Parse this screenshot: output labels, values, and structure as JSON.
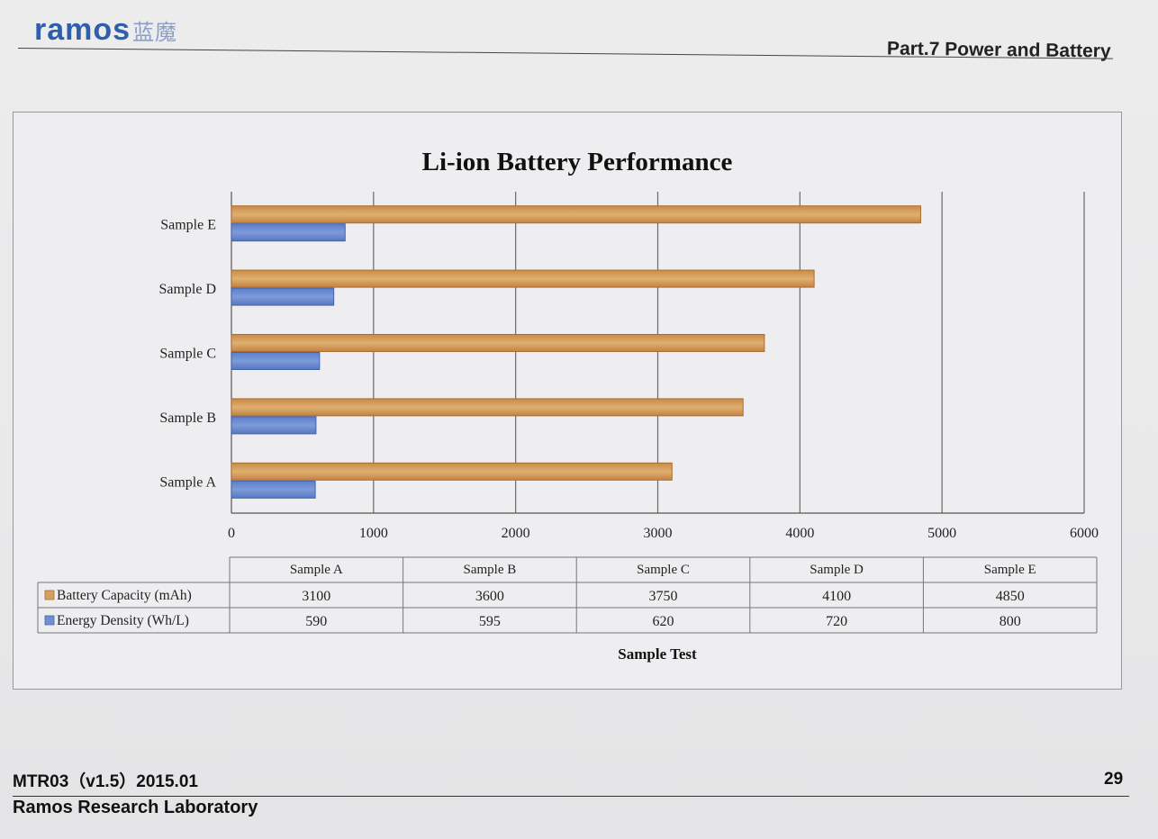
{
  "header": {
    "logo_text": "ramos",
    "logo_cn": "蓝魔",
    "section_title": "Part.7 Power and Battery"
  },
  "footer": {
    "doc_code": "MTR03（v1.5）2015.01",
    "page_number": "29",
    "lab": "Ramos Research Laboratory"
  },
  "chart_data": {
    "type": "bar",
    "orientation": "horizontal",
    "title": "Li-ion Battery Performance",
    "xlabel": "Sample Test",
    "categories": [
      "Sample A",
      "Sample B",
      "Sample C",
      "Sample D",
      "Sample E"
    ],
    "series": [
      {
        "name": "Battery Capacity (mAh)",
        "values": [
          3100,
          3600,
          3750,
          4100,
          4850
        ],
        "color": "#d4a062"
      },
      {
        "name": "Energy Density (Wh/L)",
        "values": [
          590,
          595,
          620,
          720,
          800
        ],
        "color": "#6f8fd0"
      }
    ],
    "xlim": [
      0,
      6000
    ],
    "ticks": [
      "0",
      "1000",
      "2000",
      "3000",
      "4000",
      "5000",
      "6000"
    ],
    "grid": "vertical",
    "data_table": true
  }
}
